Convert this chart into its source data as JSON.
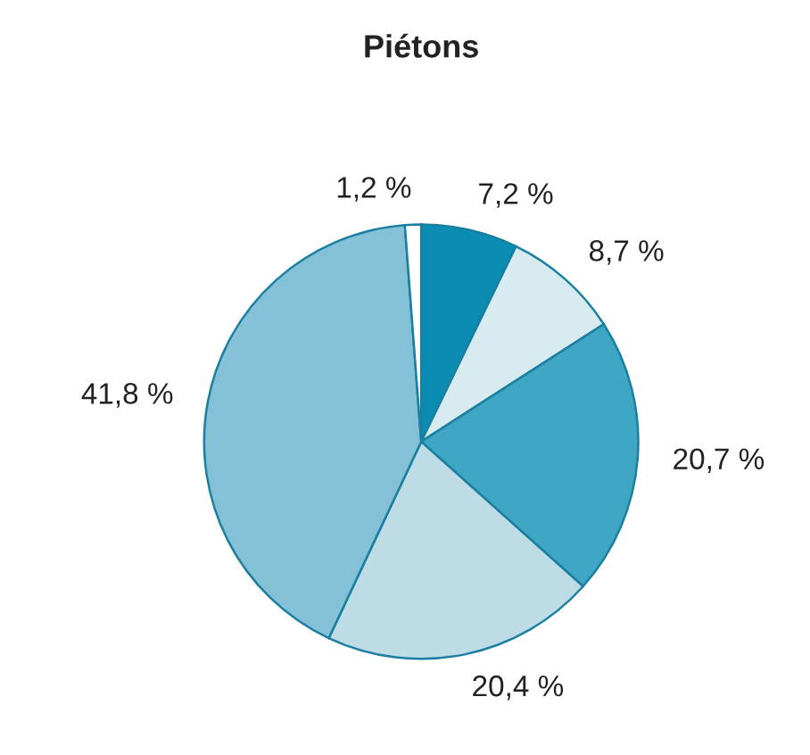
{
  "chart_data": {
    "type": "pie",
    "title": "Piétons",
    "categories": [
      null,
      null,
      null,
      null,
      null,
      null
    ],
    "values": [
      7.2,
      8.7,
      20.7,
      20.4,
      41.8,
      1.2
    ],
    "colors": [
      "#0b8db3",
      "#d8ebf1",
      "#3fa6c4",
      "#bddce6",
      "#84c0d6",
      "#ffffff"
    ],
    "value_labels": [
      "7,2 %",
      "8,7 %",
      "20,7 %",
      "20,4 %",
      "41,8 %",
      "1,2 %"
    ],
    "legend": false
  }
}
